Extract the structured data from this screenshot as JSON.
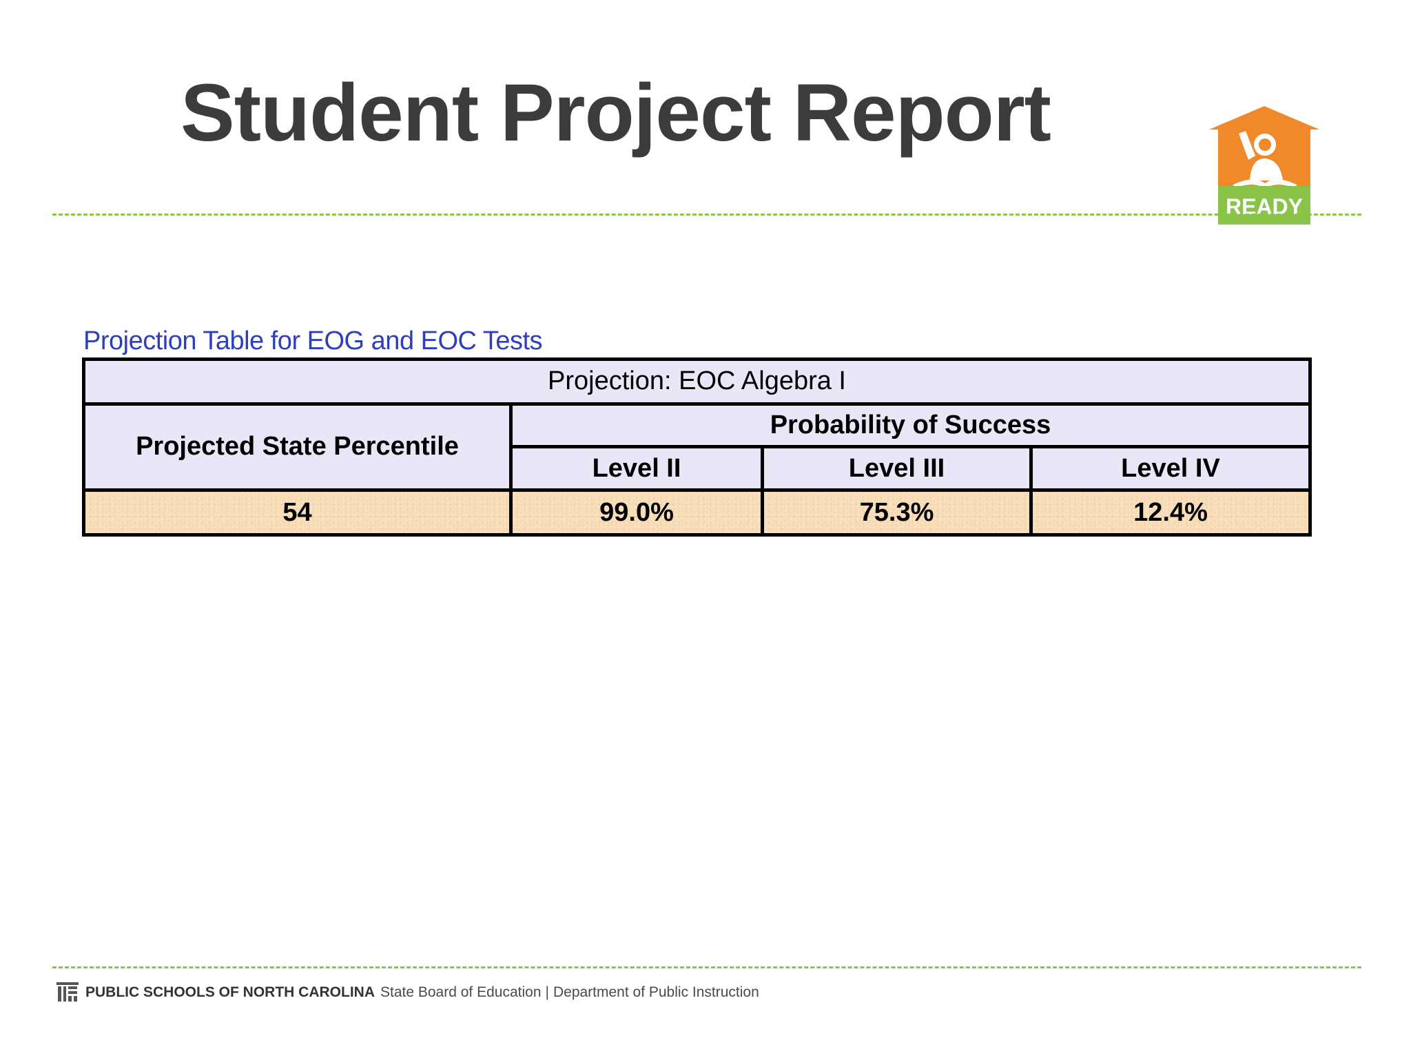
{
  "slide": {
    "title": "Student Project Report",
    "logo_text": "READY"
  },
  "table": {
    "caption": "Projection Table for EOG and EOC Tests",
    "projection": "Projection: EOC Algebra I",
    "percentile_header": "Projected State Percentile",
    "probability_header": "Probability of Success",
    "levels": [
      "Level II",
      "Level III",
      "Level IV"
    ],
    "values": {
      "percentile": "54",
      "level_ii": "99.0%",
      "level_iii": "75.3%",
      "level_iv": "12.4%"
    }
  },
  "footer": {
    "org": "PUBLIC SCHOOLS OF NORTH CAROLINA",
    "board": "State Board of Education",
    "separator": "|",
    "department": "Department of Public Instruction"
  },
  "colors": {
    "title": "#3c3c3c",
    "accent_green": "#8ac34a",
    "logo_orange": "#f0892a",
    "caption_blue": "#2b3fbf",
    "header_fill": "#e7e7f7",
    "value_fill": "#f7dcb6"
  }
}
